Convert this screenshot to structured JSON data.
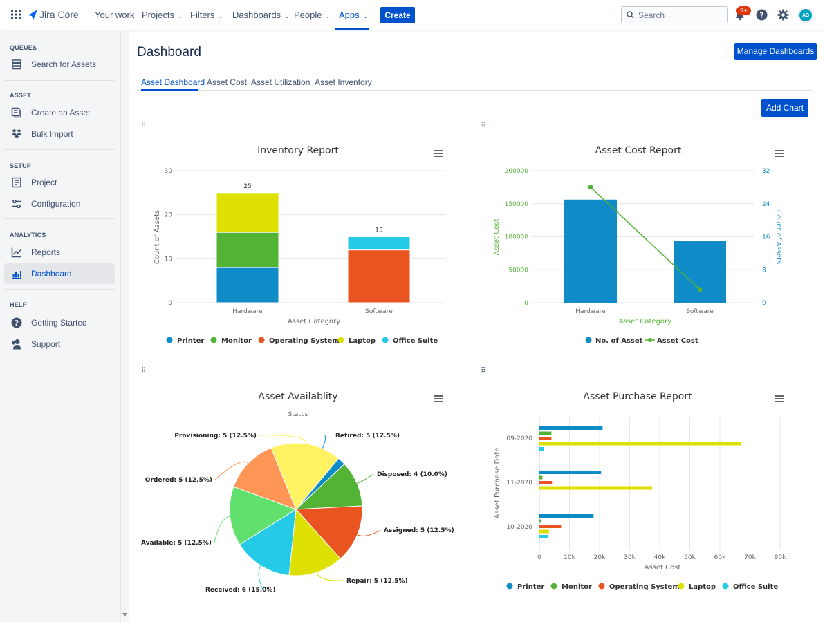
{
  "app": {
    "brand": "Jira Core",
    "nav": [
      {
        "label": "Your work",
        "dropdown": false
      },
      {
        "label": "Projects",
        "dropdown": true
      },
      {
        "label": "Filters",
        "dropdown": true
      },
      {
        "label": "Dashboards",
        "dropdown": true
      },
      {
        "label": "People",
        "dropdown": true
      },
      {
        "label": "Apps",
        "dropdown": true,
        "active": true
      }
    ],
    "create_label": "Create",
    "search_placeholder": "Search",
    "notification_count": "9+",
    "avatar_initials": "AB",
    "accent_color": "#0052cc"
  },
  "sidebar": {
    "sections": [
      {
        "heading": "QUEUES",
        "items": [
          {
            "label": "Search for Assets",
            "icon": "stack-icon"
          }
        ]
      },
      {
        "heading": "ASSET",
        "items": [
          {
            "label": "Create an Asset",
            "icon": "create-icon"
          },
          {
            "label": "Bulk Import",
            "icon": "dropbox-icon"
          }
        ]
      },
      {
        "heading": "SETUP",
        "items": [
          {
            "label": "Project",
            "icon": "project-icon"
          },
          {
            "label": "Configuration",
            "icon": "sliders-icon"
          }
        ]
      },
      {
        "heading": "ANALYTICS",
        "items": [
          {
            "label": "Reports",
            "icon": "line-chart-icon"
          },
          {
            "label": "Dashboard",
            "icon": "bar-chart-icon",
            "active": true
          }
        ]
      },
      {
        "heading": "HELP",
        "items": [
          {
            "label": "Getting Started",
            "icon": "question-icon"
          },
          {
            "label": "Support",
            "icon": "support-icon"
          }
        ]
      }
    ]
  },
  "main": {
    "title": "Dashboard",
    "manage_label": "Manage Dashboards",
    "add_chart_label": "Add Chart",
    "tabs": [
      "Asset Dashboard",
      "Asset Cost",
      "Asset Utilization",
      "Asset Inventory"
    ],
    "active_tab": 0
  },
  "chart_data": [
    {
      "type": "bar",
      "stacked": true,
      "title": "Inventory Report",
      "xlabel": "Asset Category",
      "ylabel": "Count of Assets",
      "categories": [
        "Hardware",
        "Software"
      ],
      "ylim": [
        0,
        30
      ],
      "yticks": [
        "0",
        "10",
        "20",
        "30"
      ],
      "series": [
        {
          "name": "Printer",
          "color": "#0f8bc8",
          "values": [
            8,
            0
          ]
        },
        {
          "name": "Monitor",
          "color": "#52b335",
          "values": [
            8,
            0
          ]
        },
        {
          "name": "Operating System",
          "color": "#e95420",
          "values": [
            0,
            12
          ]
        },
        {
          "name": "Laptop",
          "color": "#dde000",
          "values": [
            9,
            0
          ]
        },
        {
          "name": "Office Suite",
          "color": "#25cbe6",
          "values": [
            0,
            3
          ]
        }
      ],
      "totals": [
        "25",
        "15"
      ],
      "legend_position": "bottom"
    },
    {
      "type": "bar",
      "title": "Asset Cost Report",
      "xlabel": "Asset Category",
      "ylabel": "Asset Cost",
      "y2label": "Count of Assets",
      "categories": [
        "Hardware",
        "Software"
      ],
      "ylim": [
        0,
        200000
      ],
      "yticks": [
        "0",
        "50000",
        "100000",
        "150000",
        "200000"
      ],
      "y2lim": [
        0,
        32
      ],
      "y2ticks": [
        "0",
        "8",
        "16",
        "24",
        "32"
      ],
      "series": [
        {
          "name": "No. of Asset",
          "color": "#0f8bc8",
          "kind": "bar",
          "axis": "y2",
          "values": [
            25,
            15
          ]
        },
        {
          "name": "Asset Cost",
          "color": "#52b335",
          "kind": "line",
          "axis": "y",
          "values": [
            175000,
            20000
          ]
        }
      ],
      "legend_position": "bottom"
    },
    {
      "type": "pie",
      "title": "Asset Availablity",
      "subtitle": "Status",
      "slices": [
        {
          "name": "Retired",
          "label": "Retired: 5 (12.5%)",
          "value": 5,
          "color": "#0f8bc8"
        },
        {
          "name": "Disposed",
          "label": "Disposed: 4 (10.0%)",
          "value": 4,
          "color": "#52b335"
        },
        {
          "name": "Assigned",
          "label": "Assigned: 5 (12.5%)",
          "value": 5,
          "color": "#e95420"
        },
        {
          "name": "Repair",
          "label": "Repair: 5 (12.5%)",
          "value": 5,
          "color": "#dde000"
        },
        {
          "name": "Received",
          "label": "Received: 6 (15.0%)",
          "value": 6,
          "color": "#25cbe6"
        },
        {
          "name": "Available",
          "label": "Available: 5 (12.5%)",
          "value": 5,
          "color": "#62e06e"
        },
        {
          "name": "Ordered",
          "label": "Ordered: 5 (12.5%)",
          "value": 5,
          "color": "#ff9655"
        },
        {
          "name": "Provisioning",
          "label": "Provisioning: 5 (12.5%)",
          "value": 5,
          "color": "#fff263"
        }
      ]
    },
    {
      "type": "bar",
      "orientation": "horizontal",
      "title": "Asset Purchase Report",
      "xlabel": "Asset Cost",
      "ylabel": "Asset Purchase Date",
      "categories": [
        "09-2020",
        "11-2020",
        "10-2020"
      ],
      "xlim": [
        0,
        80000
      ],
      "xticks": [
        "0",
        "10k",
        "20k",
        "30k",
        "40k",
        "50k",
        "60k",
        "70k",
        "80k"
      ],
      "series": [
        {
          "name": "Printer",
          "color": "#0f8bc8",
          "values": [
            21000,
            20500,
            18000
          ]
        },
        {
          "name": "Monitor",
          "color": "#52b335",
          "values": [
            4000,
            1000,
            500
          ]
        },
        {
          "name": "Operating System",
          "color": "#e95420",
          "values": [
            4000,
            4200,
            7200
          ]
        },
        {
          "name": "Laptop",
          "color": "#dde000",
          "values": [
            67000,
            37500,
            3200
          ]
        },
        {
          "name": "Office Suite",
          "color": "#25cbe6",
          "values": [
            1500,
            0,
            2800
          ]
        }
      ],
      "legend_position": "bottom"
    }
  ]
}
